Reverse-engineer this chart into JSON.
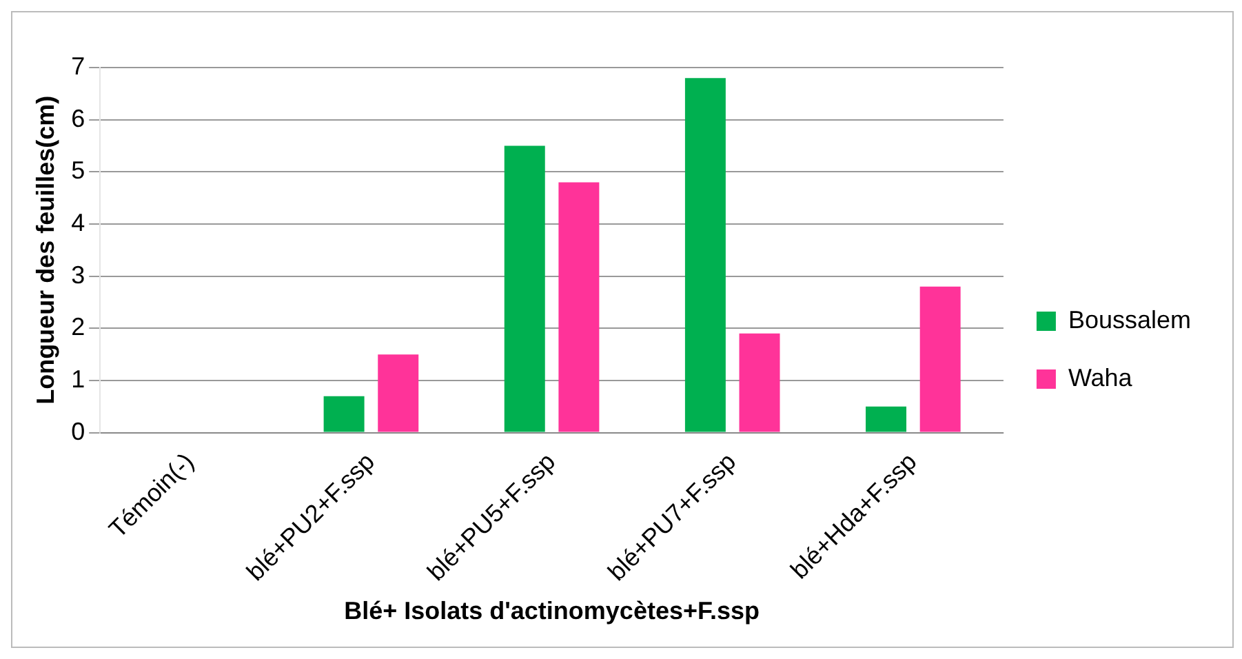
{
  "chart_data": {
    "type": "bar",
    "xlabel": "Blé+ Isolats d'actinomycètes+F.ssp",
    "ylabel": "Longueur des feuilles(cm)",
    "categories": [
      "Témoin(-)",
      "blé+PU2+F.ssp",
      "blé+PU5+F.ssp",
      "blé+PU7+F.ssp",
      "blé+Hda+F.ssp"
    ],
    "series": [
      {
        "name": "Boussalem",
        "color": "#00b050",
        "values": [
          0,
          0.7,
          5.5,
          6.8,
          0.5
        ]
      },
      {
        "name": "Waha",
        "color": "#ff3399",
        "values": [
          0,
          1.5,
          4.8,
          1.9,
          2.8
        ]
      }
    ],
    "ylim": [
      0,
      7
    ],
    "yticks": [
      0,
      1,
      2,
      3,
      4,
      5,
      6,
      7
    ],
    "grid": "y",
    "legend": "right"
  }
}
